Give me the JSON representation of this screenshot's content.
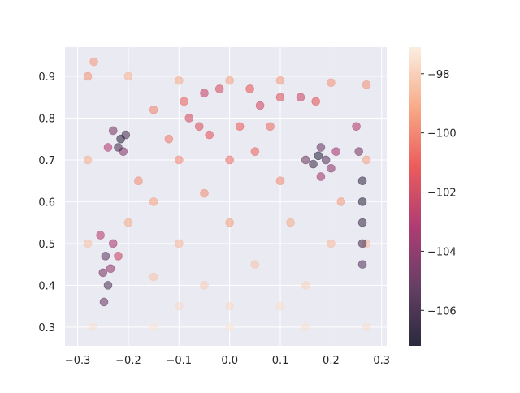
{
  "chart_data": {
    "type": "scatter",
    "title": "",
    "xlabel": "",
    "ylabel": "",
    "xlim": [
      -0.325,
      0.31
    ],
    "ylim": [
      0.255,
      0.97
    ],
    "x_ticks": [
      -0.3,
      -0.2,
      -0.1,
      0.0,
      0.1,
      0.2,
      0.3
    ],
    "x_tick_labels": [
      "−0.3",
      "−0.2",
      "−0.1",
      "0.0",
      "0.1",
      "0.2",
      "0.3"
    ],
    "y_ticks": [
      0.3,
      0.4,
      0.5,
      0.6,
      0.7,
      0.8,
      0.9
    ],
    "y_tick_labels": [
      "0.3",
      "0.4",
      "0.5",
      "0.6",
      "0.7",
      "0.8",
      "0.9"
    ],
    "grid": true,
    "background_color": "#eaeaf2",
    "marker_alpha": 0.5,
    "colorbar": {
      "colormap": "rocket",
      "vmin": -107.2,
      "vmax": -97.1,
      "ticks": [
        -98,
        -100,
        -102,
        -104,
        -106
      ],
      "tick_labels": [
        "−98",
        "−100",
        "−102",
        "−104",
        "−106"
      ]
    },
    "colormap_stops": [
      "#03051a",
      "#4c1d4b",
      "#a11a5b",
      "#e83f3f",
      "#f69c73",
      "#faebdd"
    ],
    "points": [
      {
        "x": -0.28,
        "y": 0.9,
        "value": -99.6
      },
      {
        "x": -0.268,
        "y": 0.935,
        "value": -99.5
      },
      {
        "x": -0.27,
        "y": 0.3,
        "value": -97.4
      },
      {
        "x": 0.27,
        "y": 0.3,
        "value": -97.5
      },
      {
        "x": 0.27,
        "y": 0.88,
        "value": -99.6
      },
      {
        "x": 0.0,
        "y": 0.3,
        "value": -97.3
      },
      {
        "x": -0.15,
        "y": 0.3,
        "value": -97.3
      },
      {
        "x": 0.15,
        "y": 0.3,
        "value": -97.4
      },
      {
        "x": -0.2,
        "y": 0.9,
        "value": -98.8
      },
      {
        "x": -0.1,
        "y": 0.89,
        "value": -99.0
      },
      {
        "x": 0.0,
        "y": 0.89,
        "value": -99.2
      },
      {
        "x": 0.1,
        "y": 0.89,
        "value": -99.4
      },
      {
        "x": 0.2,
        "y": 0.885,
        "value": -99.6
      },
      {
        "x": -0.28,
        "y": 0.7,
        "value": -98.9
      },
      {
        "x": -0.28,
        "y": 0.5,
        "value": -98.3
      },
      {
        "x": 0.27,
        "y": 0.7,
        "value": -99.2
      },
      {
        "x": 0.27,
        "y": 0.5,
        "value": -98.4
      },
      {
        "x": -0.215,
        "y": 0.75,
        "value": -106.8
      },
      {
        "x": -0.22,
        "y": 0.73,
        "value": -106.0
      },
      {
        "x": -0.23,
        "y": 0.77,
        "value": -104.5
      },
      {
        "x": -0.205,
        "y": 0.76,
        "value": -105.8
      },
      {
        "x": -0.24,
        "y": 0.73,
        "value": -103.0
      },
      {
        "x": -0.21,
        "y": 0.72,
        "value": -104.2
      },
      {
        "x": 0.175,
        "y": 0.71,
        "value": -106.9
      },
      {
        "x": 0.165,
        "y": 0.69,
        "value": -106.2
      },
      {
        "x": 0.19,
        "y": 0.7,
        "value": -105.5
      },
      {
        "x": 0.18,
        "y": 0.73,
        "value": -105.0
      },
      {
        "x": 0.15,
        "y": 0.7,
        "value": -104.8
      },
      {
        "x": 0.2,
        "y": 0.68,
        "value": -104.0
      },
      {
        "x": 0.21,
        "y": 0.72,
        "value": -103.2
      },
      {
        "x": 0.18,
        "y": 0.66,
        "value": -103.5
      },
      {
        "x": 0.262,
        "y": 0.65,
        "value": -106.5
      },
      {
        "x": 0.262,
        "y": 0.6,
        "value": -106.8
      },
      {
        "x": 0.262,
        "y": 0.55,
        "value": -106.4
      },
      {
        "x": 0.262,
        "y": 0.5,
        "value": -106.0
      },
      {
        "x": 0.262,
        "y": 0.45,
        "value": -105.6
      },
      {
        "x": 0.255,
        "y": 0.72,
        "value": -104.5
      },
      {
        "x": 0.25,
        "y": 0.78,
        "value": -103.0
      },
      {
        "x": -0.245,
        "y": 0.47,
        "value": -105.2
      },
      {
        "x": -0.25,
        "y": 0.43,
        "value": -104.6
      },
      {
        "x": -0.24,
        "y": 0.4,
        "value": -105.8
      },
      {
        "x": -0.235,
        "y": 0.44,
        "value": -103.8
      },
      {
        "x": -0.248,
        "y": 0.36,
        "value": -104.9
      },
      {
        "x": -0.23,
        "y": 0.5,
        "value": -103.4
      },
      {
        "x": -0.255,
        "y": 0.52,
        "value": -102.8
      },
      {
        "x": -0.22,
        "y": 0.47,
        "value": -102.3
      },
      {
        "x": -0.06,
        "y": 0.78,
        "value": -101.6
      },
      {
        "x": -0.08,
        "y": 0.8,
        "value": -101.9
      },
      {
        "x": -0.04,
        "y": 0.76,
        "value": -101.4
      },
      {
        "x": 0.02,
        "y": 0.78,
        "value": -101.0
      },
      {
        "x": 0.06,
        "y": 0.83,
        "value": -102.0
      },
      {
        "x": 0.1,
        "y": 0.85,
        "value": -101.6
      },
      {
        "x": 0.14,
        "y": 0.85,
        "value": -102.2
      },
      {
        "x": 0.17,
        "y": 0.84,
        "value": -101.3
      },
      {
        "x": -0.02,
        "y": 0.87,
        "value": -101.8
      },
      {
        "x": -0.05,
        "y": 0.86,
        "value": -102.4
      },
      {
        "x": 0.04,
        "y": 0.87,
        "value": -101.2
      },
      {
        "x": -0.09,
        "y": 0.84,
        "value": -100.8
      },
      {
        "x": 0.0,
        "y": 0.7,
        "value": -100.5
      },
      {
        "x": 0.05,
        "y": 0.72,
        "value": -100.8
      },
      {
        "x": -0.12,
        "y": 0.75,
        "value": -100.2
      },
      {
        "x": 0.08,
        "y": 0.78,
        "value": -100.6
      },
      {
        "x": -0.15,
        "y": 0.82,
        "value": -100.0
      },
      {
        "x": -0.1,
        "y": 0.7,
        "value": -99.9
      },
      {
        "x": 0.1,
        "y": 0.65,
        "value": -99.8
      },
      {
        "x": -0.05,
        "y": 0.62,
        "value": -99.7
      },
      {
        "x": 0.0,
        "y": 0.55,
        "value": -99.3
      },
      {
        "x": -0.15,
        "y": 0.6,
        "value": -99.2
      },
      {
        "x": 0.12,
        "y": 0.55,
        "value": -99.0
      },
      {
        "x": -0.1,
        "y": 0.5,
        "value": -98.7
      },
      {
        "x": 0.05,
        "y": 0.45,
        "value": -98.3
      },
      {
        "x": -0.05,
        "y": 0.4,
        "value": -98.0
      },
      {
        "x": 0.15,
        "y": 0.4,
        "value": -97.8
      },
      {
        "x": -0.15,
        "y": 0.42,
        "value": -98.2
      },
      {
        "x": 0.2,
        "y": 0.5,
        "value": -98.5
      },
      {
        "x": 0.0,
        "y": 0.35,
        "value": -97.6
      },
      {
        "x": 0.1,
        "y": 0.35,
        "value": -97.5
      },
      {
        "x": -0.1,
        "y": 0.35,
        "value": -97.6
      },
      {
        "x": -0.2,
        "y": 0.55,
        "value": -99.0
      },
      {
        "x": 0.22,
        "y": 0.6,
        "value": -99.4
      },
      {
        "x": -0.18,
        "y": 0.65,
        "value": -99.8
      }
    ]
  }
}
